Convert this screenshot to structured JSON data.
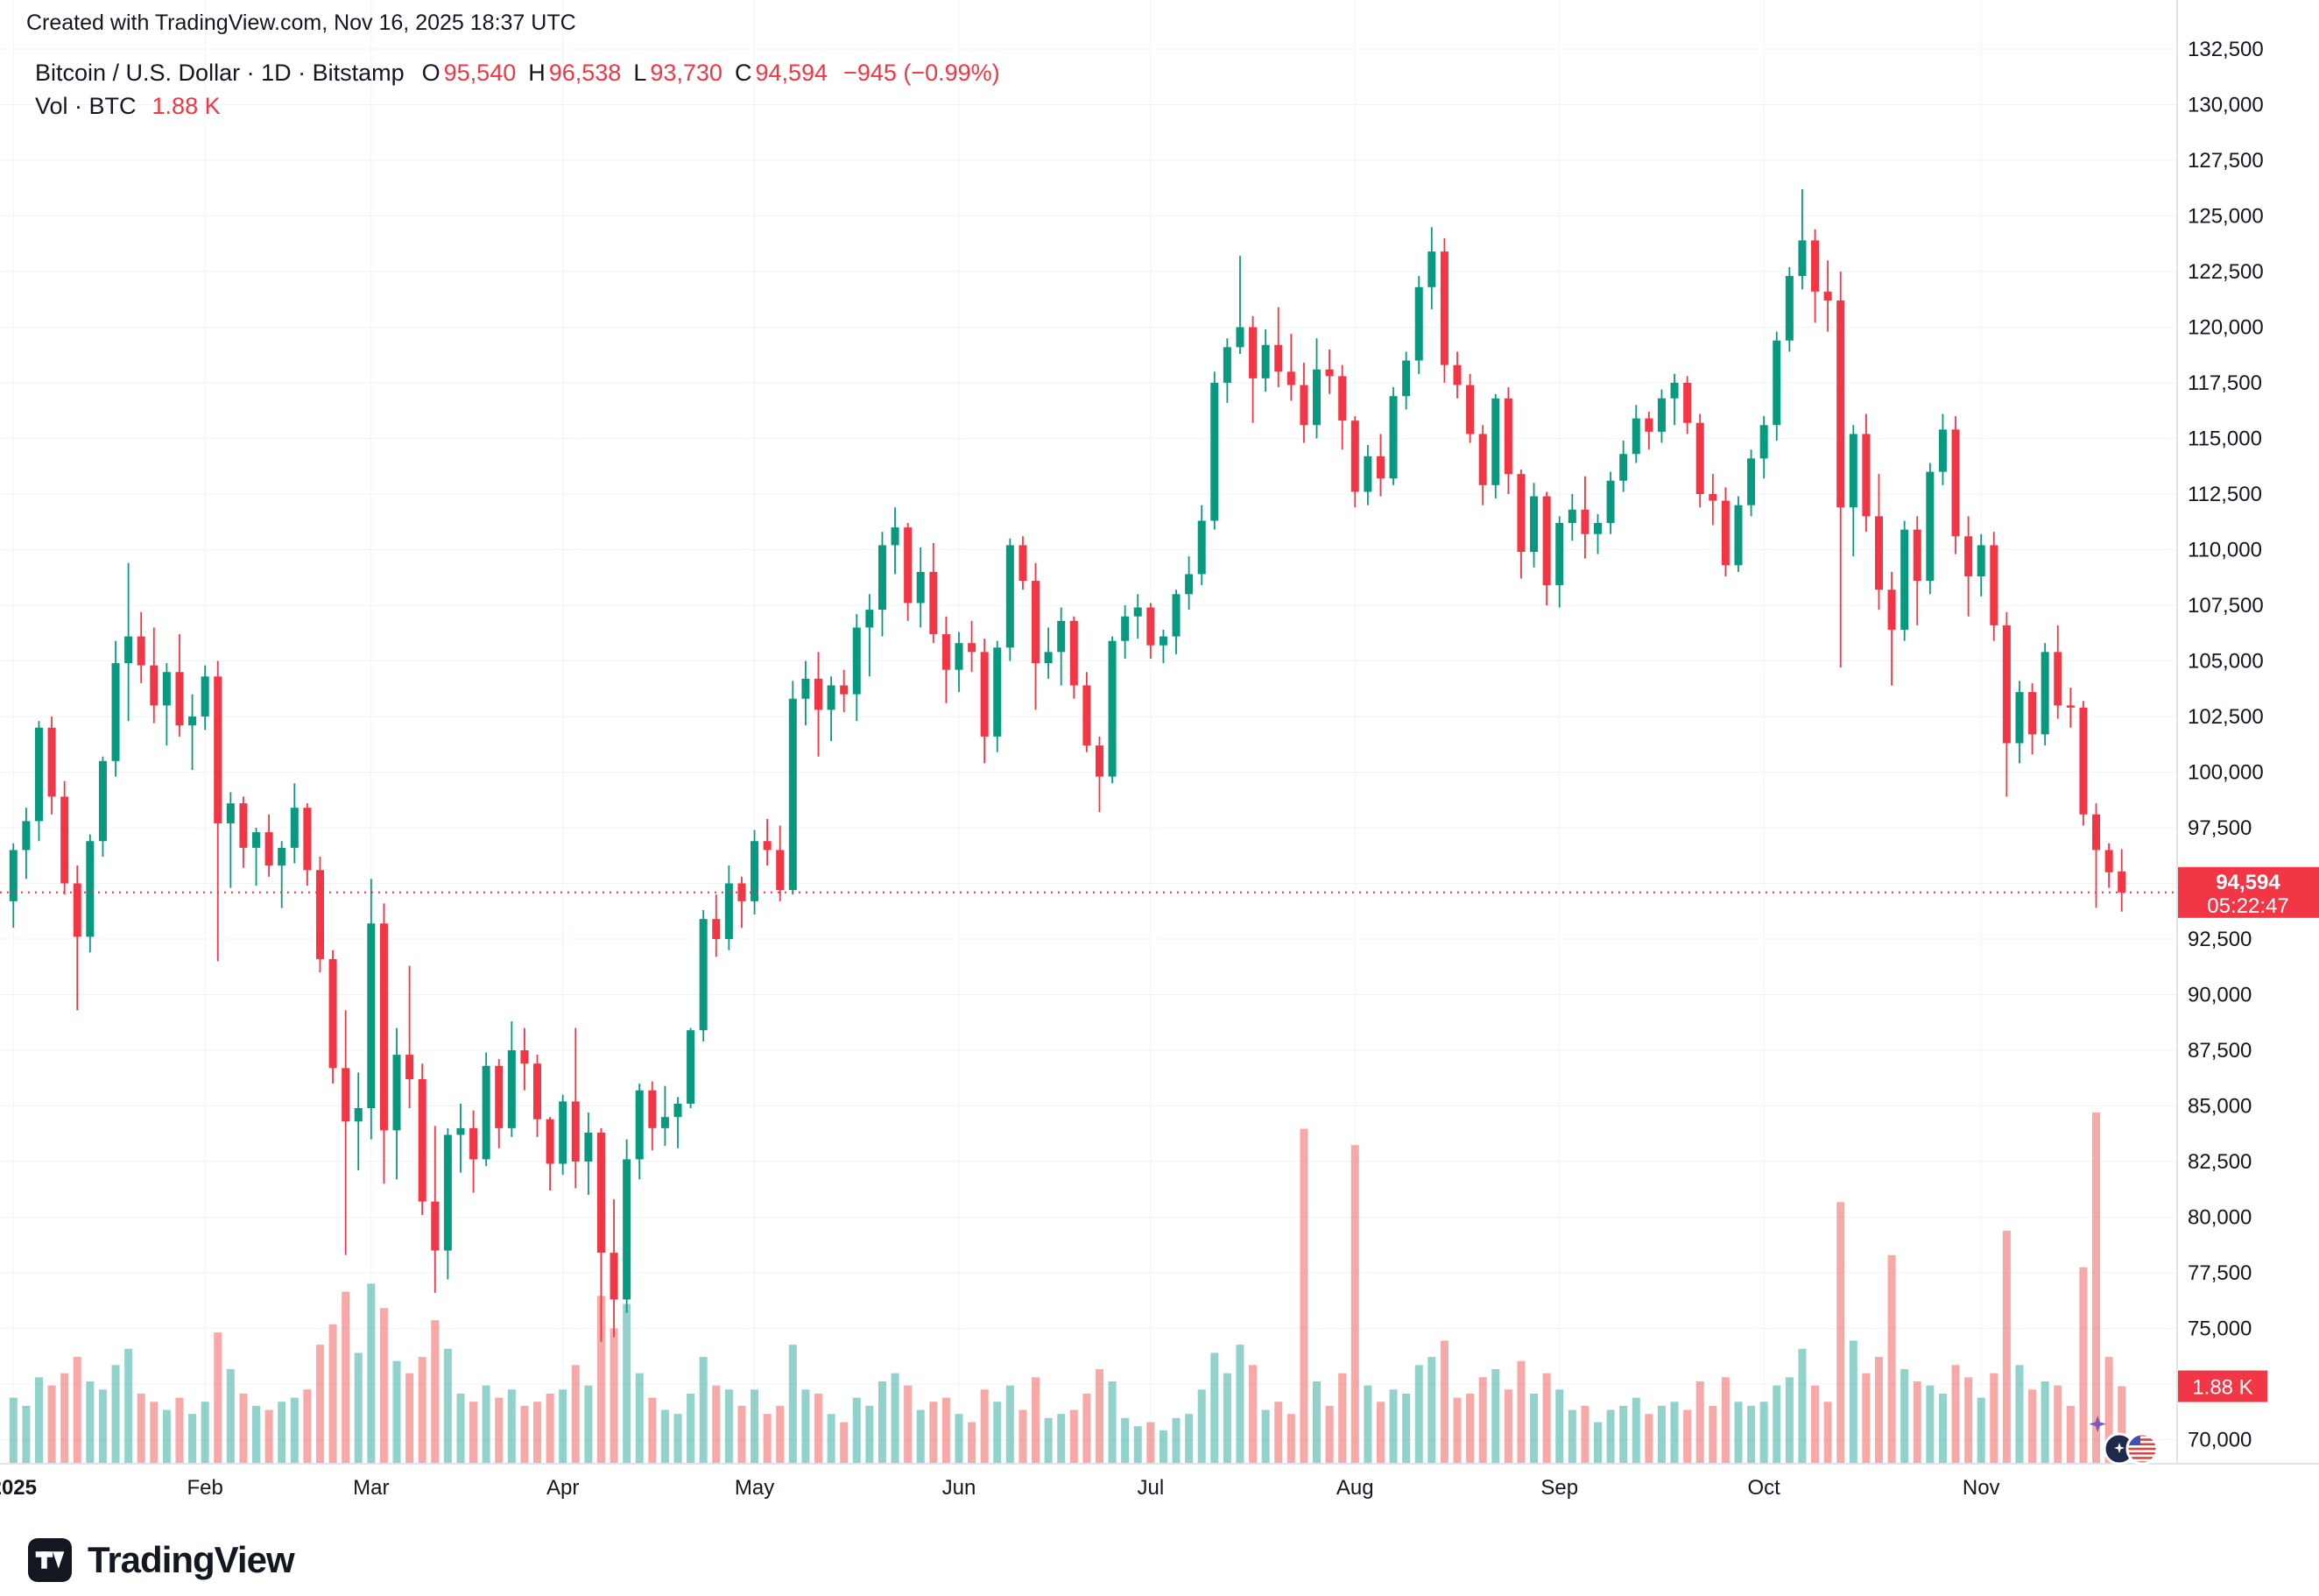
{
  "header": {
    "attribution": "Created with TradingView.com, Nov 16, 2025 18:37 UTC"
  },
  "legend": {
    "title": "Bitcoin / U.S. Dollar · 1D · Bitstamp",
    "o_label": "O",
    "o_value": "95,540",
    "h_label": "H",
    "h_value": "96,538",
    "l_label": "L",
    "l_value": "93,730",
    "c_label": "C",
    "c_value": "94,594",
    "change": "−945 (−0.99%)",
    "volume_label": "Vol · BTC",
    "volume_value": "1.88 K"
  },
  "price_scale": {
    "last_price_label": "94,594",
    "countdown": "05:22:47",
    "volume_badge_label": "1.88 K"
  },
  "branding": {
    "logo_text": "TradingView"
  },
  "colors": {
    "up": "#089981",
    "down": "#f23645",
    "vol_up": "rgba(38,166,154,0.5)",
    "vol_down": "rgba(239,83,80,0.5)",
    "grid": "#f0f3fa",
    "axis_border": "#e0e3eb",
    "text": "#131722",
    "badge_text": "#ffffff"
  },
  "chart_data": {
    "type": "candlestick",
    "symbol": "Bitcoin / U.S. Dollar",
    "exchange": "Bitstamp",
    "interval": "1D",
    "unit": "USD",
    "volume_unit": "K BTC",
    "legend_position": "top-left",
    "grid": true,
    "last_price": 94594,
    "last_change": "−945 (−0.99%)",
    "last_volume_k": 1.88,
    "y_axis": {
      "min": 70000,
      "max": 132500,
      "tick_step": 2500
    },
    "x_range": [
      "Jan 1 2025",
      "Nov 16 2025"
    ],
    "months": [
      {
        "label": "2025",
        "index": 0,
        "bold": true
      },
      {
        "label": "Feb",
        "index": 15
      },
      {
        "label": "Mar",
        "index": 28
      },
      {
        "label": "Apr",
        "index": 43
      },
      {
        "label": "May",
        "index": 58
      },
      {
        "label": "Jun",
        "index": 74
      },
      {
        "label": "Jul",
        "index": 89
      },
      {
        "label": "Aug",
        "index": 105
      },
      {
        "label": "Sep",
        "index": 121
      },
      {
        "label": "Oct",
        "index": 137
      },
      {
        "label": "Nov",
        "index": 154
      }
    ],
    "candles_format": [
      "open",
      "high",
      "low",
      "close",
      "volume_k"
    ],
    "candles": [
      [
        94200,
        96800,
        93000,
        96500,
        1.6
      ],
      [
        96500,
        98400,
        95200,
        97800,
        1.4
      ],
      [
        97800,
        102300,
        96900,
        102000,
        2.1
      ],
      [
        102000,
        102500,
        98100,
        98900,
        1.9
      ],
      [
        98900,
        99600,
        94500,
        95000,
        2.2
      ],
      [
        95000,
        95800,
        89300,
        92600,
        2.6
      ],
      [
        92600,
        97200,
        91900,
        96900,
        2.0
      ],
      [
        96900,
        100700,
        96200,
        100500,
        1.8
      ],
      [
        100500,
        105900,
        99800,
        104900,
        2.4
      ],
      [
        104900,
        109400,
        102300,
        106100,
        2.8
      ],
      [
        106100,
        107200,
        104000,
        104800,
        1.7
      ],
      [
        104800,
        106500,
        102200,
        103000,
        1.5
      ],
      [
        103000,
        104900,
        101200,
        104500,
        1.3
      ],
      [
        104500,
        106200,
        101600,
        102100,
        1.6
      ],
      [
        102100,
        103500,
        100100,
        102500,
        1.2
      ],
      [
        102500,
        104800,
        101900,
        104300,
        1.5
      ],
      [
        104300,
        105000,
        91500,
        97700,
        3.2
      ],
      [
        97700,
        99100,
        94800,
        98600,
        2.3
      ],
      [
        98600,
        98900,
        95700,
        96600,
        1.7
      ],
      [
        96600,
        97500,
        94900,
        97300,
        1.4
      ],
      [
        97300,
        98100,
        95300,
        95800,
        1.3
      ],
      [
        95800,
        96900,
        93900,
        96600,
        1.5
      ],
      [
        96600,
        99500,
        95900,
        98400,
        1.6
      ],
      [
        98400,
        98600,
        94900,
        95600,
        1.8
      ],
      [
        95600,
        96200,
        91000,
        91600,
        2.9
      ],
      [
        91600,
        92000,
        86000,
        86700,
        3.4
      ],
      [
        86700,
        89300,
        78300,
        84300,
        4.2
      ],
      [
        84300,
        86500,
        82100,
        84900,
        2.7
      ],
      [
        84900,
        95200,
        83500,
        93200,
        4.4
      ],
      [
        93200,
        94100,
        81500,
        83900,
        3.8
      ],
      [
        83900,
        88500,
        81700,
        87300,
        2.5
      ],
      [
        87300,
        91300,
        84900,
        86200,
        2.2
      ],
      [
        86200,
        86900,
        80100,
        80700,
        2.6
      ],
      [
        80700,
        84100,
        76600,
        78500,
        3.5
      ],
      [
        78500,
        84000,
        77200,
        83700,
        2.8
      ],
      [
        83700,
        85100,
        82000,
        84000,
        1.7
      ],
      [
        84000,
        84800,
        81100,
        82600,
        1.5
      ],
      [
        82600,
        87400,
        82300,
        86800,
        1.9
      ],
      [
        86800,
        87100,
        83100,
        84000,
        1.6
      ],
      [
        84000,
        88800,
        83600,
        87500,
        1.8
      ],
      [
        87500,
        88500,
        85700,
        86900,
        1.4
      ],
      [
        86900,
        87300,
        83600,
        84400,
        1.5
      ],
      [
        84400,
        84500,
        81200,
        82400,
        1.7
      ],
      [
        82400,
        85500,
        81900,
        85200,
        1.8
      ],
      [
        85200,
        88500,
        81300,
        82500,
        2.4
      ],
      [
        82500,
        84700,
        81000,
        83800,
        1.9
      ],
      [
        83800,
        84000,
        74400,
        78400,
        4.1
      ],
      [
        78400,
        80800,
        74600,
        76300,
        3.3
      ],
      [
        76300,
        83500,
        75700,
        82600,
        3.9
      ],
      [
        82600,
        86000,
        81700,
        85700,
        2.2
      ],
      [
        85700,
        86100,
        83000,
        84000,
        1.6
      ],
      [
        84000,
        85900,
        83200,
        84500,
        1.3
      ],
      [
        84500,
        85400,
        83100,
        85100,
        1.2
      ],
      [
        85100,
        88500,
        84900,
        88400,
        1.7
      ],
      [
        88400,
        93800,
        87900,
        93400,
        2.6
      ],
      [
        93400,
        94500,
        91700,
        92500,
        1.9
      ],
      [
        92500,
        95800,
        92000,
        95000,
        1.8
      ],
      [
        95000,
        95300,
        93000,
        94200,
        1.4
      ],
      [
        94200,
        97400,
        93600,
        96900,
        1.8
      ],
      [
        96900,
        97900,
        95800,
        96500,
        1.2
      ],
      [
        96500,
        97600,
        94200,
        94700,
        1.4
      ],
      [
        94700,
        104100,
        94500,
        103300,
        2.9
      ],
      [
        103300,
        105000,
        102100,
        104200,
        1.8
      ],
      [
        104200,
        105400,
        100700,
        102800,
        1.7
      ],
      [
        102800,
        104300,
        101400,
        103900,
        1.2
      ],
      [
        103900,
        104600,
        102700,
        103500,
        1.0
      ],
      [
        103500,
        107100,
        102300,
        106500,
        1.6
      ],
      [
        106500,
        108000,
        104300,
        107300,
        1.4
      ],
      [
        107300,
        110800,
        106100,
        110200,
        2.0
      ],
      [
        110200,
        111900,
        108900,
        111000,
        2.2
      ],
      [
        111000,
        111200,
        106800,
        107600,
        1.9
      ],
      [
        107600,
        110100,
        106500,
        109000,
        1.3
      ],
      [
        109000,
        110300,
        105800,
        106200,
        1.5
      ],
      [
        106200,
        107000,
        103100,
        104600,
        1.6
      ],
      [
        104600,
        106300,
        103600,
        105800,
        1.2
      ],
      [
        105800,
        106800,
        104500,
        105400,
        1.0
      ],
      [
        105400,
        106000,
        100400,
        101600,
        1.8
      ],
      [
        101600,
        105900,
        100900,
        105600,
        1.5
      ],
      [
        105600,
        110500,
        105000,
        110200,
        1.9
      ],
      [
        110200,
        110600,
        108200,
        108600,
        1.3
      ],
      [
        108600,
        109400,
        102800,
        104900,
        2.1
      ],
      [
        104900,
        106500,
        104200,
        105400,
        1.1
      ],
      [
        105400,
        107400,
        103900,
        106800,
        1.2
      ],
      [
        106800,
        107000,
        103300,
        103900,
        1.3
      ],
      [
        103900,
        104500,
        100900,
        101200,
        1.7
      ],
      [
        101200,
        101600,
        98200,
        99800,
        2.3
      ],
      [
        99800,
        106100,
        99500,
        105900,
        2.0
      ],
      [
        105900,
        107500,
        105100,
        107000,
        1.1
      ],
      [
        107000,
        108000,
        106000,
        107400,
        0.9
      ],
      [
        107400,
        107600,
        105100,
        105700,
        1.0
      ],
      [
        105700,
        106400,
        104900,
        106100,
        0.8
      ],
      [
        106100,
        108200,
        105300,
        108000,
        1.1
      ],
      [
        108000,
        109700,
        107300,
        108900,
        1.2
      ],
      [
        108900,
        112000,
        108400,
        111300,
        1.8
      ],
      [
        111300,
        118000,
        110900,
        117500,
        2.7
      ],
      [
        117500,
        119500,
        116600,
        119100,
        2.2
      ],
      [
        119100,
        123200,
        118800,
        120000,
        2.9
      ],
      [
        120000,
        120500,
        115700,
        117700,
        2.4
      ],
      [
        117700,
        119900,
        117100,
        119200,
        1.3
      ],
      [
        119200,
        120900,
        117300,
        118000,
        1.5
      ],
      [
        118000,
        119700,
        116700,
        117400,
        1.2
      ],
      [
        117400,
        118400,
        114800,
        115600,
        8.2
      ],
      [
        115600,
        119500,
        115000,
        118100,
        2.0
      ],
      [
        118100,
        119000,
        117000,
        117800,
        1.4
      ],
      [
        117800,
        118300,
        114500,
        115800,
        2.2
      ],
      [
        115800,
        116000,
        111900,
        112600,
        7.8
      ],
      [
        112600,
        114700,
        112000,
        114200,
        1.9
      ],
      [
        114200,
        115200,
        112400,
        113200,
        1.5
      ],
      [
        113200,
        117300,
        112900,
        116900,
        1.8
      ],
      [
        116900,
        118900,
        116300,
        118500,
        1.7
      ],
      [
        118500,
        122300,
        117900,
        121800,
        2.4
      ],
      [
        121800,
        124500,
        120800,
        123400,
        2.6
      ],
      [
        123400,
        124000,
        117500,
        118300,
        3.0
      ],
      [
        118300,
        118900,
        116800,
        117400,
        1.6
      ],
      [
        117400,
        117900,
        114800,
        115200,
        1.7
      ],
      [
        115200,
        115600,
        112000,
        112900,
        2.1
      ],
      [
        112900,
        117000,
        112300,
        116800,
        2.3
      ],
      [
        116800,
        117300,
        112500,
        113400,
        1.8
      ],
      [
        113400,
        113600,
        108700,
        109900,
        2.5
      ],
      [
        109900,
        113000,
        109200,
        112400,
        1.7
      ],
      [
        112400,
        112600,
        107500,
        108400,
        2.2
      ],
      [
        108400,
        111500,
        107400,
        111200,
        1.8
      ],
      [
        111200,
        112500,
        110400,
        111800,
        1.3
      ],
      [
        111800,
        113300,
        109600,
        110700,
        1.4
      ],
      [
        110700,
        111600,
        109800,
        111200,
        1.0
      ],
      [
        111200,
        113500,
        110700,
        113100,
        1.3
      ],
      [
        113100,
        114900,
        112600,
        114300,
        1.4
      ],
      [
        114300,
        116500,
        113900,
        115900,
        1.6
      ],
      [
        115900,
        116200,
        114500,
        115300,
        1.2
      ],
      [
        115300,
        117200,
        114800,
        116800,
        1.4
      ],
      [
        116800,
        117900,
        115600,
        117500,
        1.5
      ],
      [
        117500,
        117800,
        115200,
        115700,
        1.3
      ],
      [
        115700,
        116100,
        111900,
        112500,
        2.0
      ],
      [
        112500,
        113400,
        111100,
        112200,
        1.4
      ],
      [
        112200,
        112800,
        108800,
        109300,
        2.1
      ],
      [
        109300,
        112400,
        109000,
        112000,
        1.5
      ],
      [
        112000,
        114500,
        111500,
        114100,
        1.4
      ],
      [
        114100,
        116000,
        113200,
        115600,
        1.5
      ],
      [
        115600,
        119800,
        114900,
        119400,
        1.9
      ],
      [
        119400,
        122700,
        118900,
        122300,
        2.1
      ],
      [
        122300,
        126200,
        121700,
        123900,
        2.8
      ],
      [
        123900,
        124400,
        120200,
        121600,
        1.9
      ],
      [
        121600,
        123000,
        119800,
        121200,
        1.5
      ],
      [
        121200,
        122500,
        104700,
        111900,
        6.4
      ],
      [
        111900,
        115600,
        109700,
        115200,
        3.0
      ],
      [
        115200,
        116100,
        110800,
        111500,
        2.2
      ],
      [
        111500,
        113400,
        107300,
        108200,
        2.6
      ],
      [
        108200,
        109000,
        103900,
        106400,
        5.1
      ],
      [
        106400,
        111300,
        105900,
        110900,
        2.3
      ],
      [
        110900,
        111500,
        106600,
        108600,
        2.0
      ],
      [
        108600,
        113900,
        108000,
        113500,
        1.9
      ],
      [
        113500,
        116100,
        112900,
        115400,
        1.7
      ],
      [
        115400,
        116000,
        109800,
        110600,
        2.4
      ],
      [
        110600,
        111500,
        107000,
        108800,
        2.1
      ],
      [
        108800,
        110700,
        107900,
        110200,
        1.6
      ],
      [
        110200,
        110800,
        105900,
        106600,
        2.2
      ],
      [
        106600,
        107200,
        98900,
        101300,
        5.7
      ],
      [
        101300,
        104100,
        100400,
        103600,
        2.4
      ],
      [
        103600,
        104000,
        100800,
        101700,
        1.8
      ],
      [
        101700,
        105800,
        101200,
        105400,
        2.0
      ],
      [
        105400,
        106600,
        102400,
        103000,
        1.9
      ],
      [
        103000,
        103800,
        102000,
        102900,
        1.4
      ],
      [
        102900,
        103200,
        97600,
        98100,
        4.8
      ],
      [
        98100,
        98600,
        93900,
        96500,
        8.6
      ],
      [
        96500,
        96800,
        94800,
        95500,
        2.6
      ],
      [
        95540,
        96538,
        93730,
        94594,
        1.88
      ]
    ]
  }
}
